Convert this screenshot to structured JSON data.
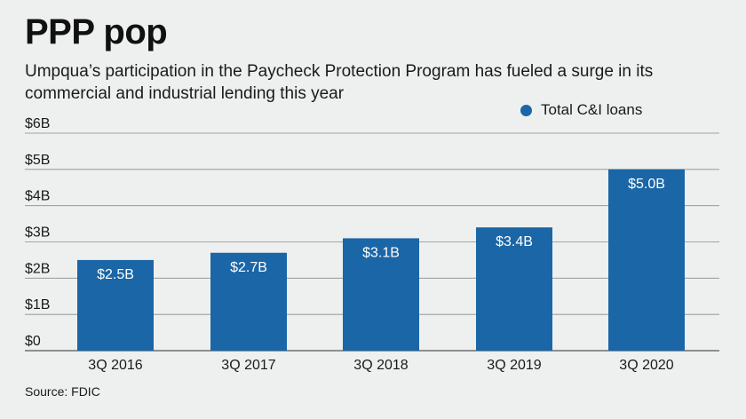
{
  "chart_data": {
    "type": "bar",
    "title": "PPP pop",
    "subtitle": "Umpqua’s participation in the Paycheck Protection Program has fueled a surge in its commercial and industrial lending this year",
    "categories": [
      "3Q 2016",
      "3Q 2017",
      "3Q 2018",
      "3Q 2019",
      "3Q 2020"
    ],
    "series": [
      {
        "name": "Total C&I loans",
        "values": [
          2.5,
          2.7,
          3.1,
          3.4,
          5.0
        ],
        "data_labels": [
          "$2.5B",
          "$2.7B",
          "$3.1B",
          "$3.4B",
          "$5.0B"
        ]
      }
    ],
    "ylim": [
      0,
      6
    ],
    "yticks": [
      0,
      1,
      2,
      3,
      4,
      5,
      6
    ],
    "ytick_labels": [
      "$0",
      "$1B",
      "$2B",
      "$3B",
      "$4B",
      "$5B",
      "$6B"
    ],
    "grid": true,
    "legend": "top-right",
    "bar_color": "#1a66a6",
    "source": "Source: FDIC"
  }
}
